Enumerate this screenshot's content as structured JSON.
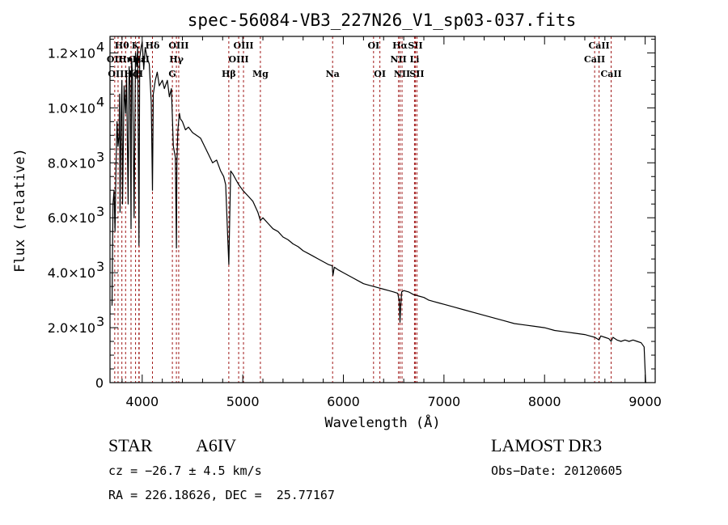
{
  "chart_data": {
    "type": "line",
    "title": "spec-56084-VB3_227N26_V1_sp03-037.fits",
    "xlabel": "Wavelength (Å)",
    "ylabel": "Flux (relative)",
    "xlim": [
      3680,
      9100
    ],
    "ylim": [
      0,
      12600
    ],
    "xticks": [
      4000,
      5000,
      6000,
      7000,
      8000,
      9000
    ],
    "xtick_labels": [
      "4000",
      "5000",
      "6000",
      "7000",
      "8000",
      "9000"
    ],
    "yticks": [
      0,
      2000,
      4000,
      6000,
      8000,
      10000,
      12000
    ],
    "ytick_labels": [
      {
        "mant": "0",
        "exp": ""
      },
      {
        "mant": "2.0×10",
        "exp": "3"
      },
      {
        "mant": "4.0×10",
        "exp": "3"
      },
      {
        "mant": "6.0×10",
        "exp": "3"
      },
      {
        "mant": "8.0×10",
        "exp": "3"
      },
      {
        "mant": "1.0×10",
        "exp": "4"
      },
      {
        "mant": "1.2×10",
        "exp": "4"
      }
    ],
    "grid": false,
    "series": [
      {
        "name": "spectrum",
        "x": [
          3700,
          3710,
          3720,
          3730,
          3740,
          3750,
          3760,
          3770,
          3775,
          3780,
          3790,
          3798,
          3805,
          3820,
          3835,
          3845,
          3860,
          3870,
          3880,
          3889,
          3895,
          3905,
          3920,
          3933,
          3945,
          3955,
          3968,
          3975,
          3990,
          4000,
          4015,
          4030,
          4050,
          4070,
          4090,
          4102,
          4110,
          4130,
          4150,
          4170,
          4200,
          4220,
          4250,
          4270,
          4290,
          4310,
          4330,
          4340,
          4345,
          4355,
          4370,
          4380,
          4400,
          4430,
          4460,
          4500,
          4540,
          4580,
          4620,
          4660,
          4700,
          4740,
          4780,
          4810,
          4830,
          4850,
          4861,
          4870,
          4880,
          4900,
          4930,
          4960,
          5000,
          5050,
          5100,
          5150,
          5175,
          5200,
          5250,
          5300,
          5350,
          5400,
          5450,
          5500,
          5550,
          5600,
          5650,
          5700,
          5750,
          5800,
          5850,
          5890,
          5896,
          5910,
          5950,
          6000,
          6050,
          6100,
          6150,
          6200,
          6250,
          6300,
          6350,
          6400,
          6450,
          6500,
          6540,
          6555,
          6563,
          6570,
          6580,
          6600,
          6650,
          6700,
          6750,
          6800,
          6850,
          6900,
          6950,
          7000,
          7100,
          7200,
          7300,
          7400,
          7500,
          7600,
          7700,
          7800,
          7900,
          8000,
          8100,
          8200,
          8300,
          8400,
          8450,
          8500,
          8542,
          8560,
          8600,
          8640,
          8662,
          8680,
          8720,
          8760,
          8800,
          8840,
          8880,
          8920,
          8960,
          8990,
          9000,
          9005,
          9010
        ],
        "y": [
          2800,
          6500,
          7000,
          5500,
          8000,
          9500,
          8600,
          9000,
          10500,
          6200,
          9700,
          11000,
          6500,
          10800,
          9800,
          11200,
          6500,
          11500,
          10800,
          5600,
          11800,
          11000,
          6000,
          12000,
          11500,
          12200,
          5000,
          11800,
          12200,
          12400,
          11400,
          12200,
          11800,
          11600,
          10200,
          7000,
          10500,
          11000,
          11300,
          10800,
          11000,
          10700,
          11000,
          10400,
          10700,
          8600,
          8200,
          4900,
          8000,
          9200,
          9800,
          9600,
          9500,
          9200,
          9300,
          9100,
          9000,
          8900,
          8600,
          8300,
          8000,
          8100,
          7700,
          7500,
          7200,
          5300,
          4300,
          6000,
          7700,
          7600,
          7400,
          7200,
          7000,
          6800,
          6600,
          6200,
          5900,
          6000,
          5800,
          5600,
          5500,
          5300,
          5200,
          5050,
          4950,
          4800,
          4700,
          4600,
          4500,
          4400,
          4300,
          4250,
          3900,
          4200,
          4100,
          4000,
          3900,
          3800,
          3700,
          3600,
          3550,
          3500,
          3450,
          3400,
          3350,
          3300,
          3250,
          3000,
          2200,
          2800,
          3300,
          3350,
          3300,
          3200,
          3150,
          3100,
          3000,
          2950,
          2900,
          2850,
          2750,
          2650,
          2550,
          2450,
          2350,
          2250,
          2150,
          2100,
          2050,
          2000,
          1900,
          1850,
          1800,
          1750,
          1700,
          1650,
          1550,
          1700,
          1650,
          1600,
          1500,
          1650,
          1550,
          1500,
          1550,
          1500,
          1550,
          1500,
          1450,
          1300,
          400,
          0,
          0
        ]
      }
    ],
    "line_markers": [
      {
        "label": "Hθ",
        "wavelength": 3798,
        "row": 1
      },
      {
        "label": "K",
        "wavelength": 3934,
        "row": 1
      },
      {
        "label": "Hδ",
        "wavelength": 4102,
        "row": 1
      },
      {
        "label": "OIII",
        "wavelength": 4363,
        "row": 1
      },
      {
        "label": "OIII",
        "wavelength": 5007,
        "row": 1
      },
      {
        "label": "OI",
        "wavelength": 6300,
        "row": 1
      },
      {
        "label": "Hα",
        "wavelength": 6563,
        "row": 1
      },
      {
        "label": "SII",
        "wavelength": 6716,
        "row": 1
      },
      {
        "label": "CaII",
        "wavelength": 8542,
        "row": 1
      },
      {
        "label": "OII",
        "wavelength": 3727,
        "row": 2
      },
      {
        "label": "Hη",
        "wavelength": 3835,
        "row": 2
      },
      {
        "label": "Hε",
        "wavelength": 3970,
        "row": 2
      },
      {
        "label": "CaII",
        "wavelength": 3968,
        "row": 2
      },
      {
        "label": "Hγ",
        "wavelength": 4340,
        "row": 2
      },
      {
        "label": "OIII",
        "wavelength": 4959,
        "row": 2
      },
      {
        "label": "NII",
        "wavelength": 6548,
        "row": 2
      },
      {
        "label": "Li",
        "wavelength": 6707,
        "row": 2
      },
      {
        "label": "CaII",
        "wavelength": 8498,
        "row": 2
      },
      {
        "label": "OIII",
        "wavelength": 3760,
        "row": 3
      },
      {
        "label": "Hζ",
        "wavelength": 3889,
        "row": 3
      },
      {
        "label": "H",
        "wavelength": 3968,
        "row": 3
      },
      {
        "label": "G",
        "wavelength": 4300,
        "row": 3
      },
      {
        "label": "Hβ",
        "wavelength": 4861,
        "row": 3
      },
      {
        "label": "Mg",
        "wavelength": 5175,
        "row": 3
      },
      {
        "label": "Na",
        "wavelength": 5893,
        "row": 3
      },
      {
        "label": "OI",
        "wavelength": 6363,
        "row": 3
      },
      {
        "label": "NII",
        "wavelength": 6583,
        "row": 3
      },
      {
        "label": "SII",
        "wavelength": 6731,
        "row": 3
      },
      {
        "label": "CaII",
        "wavelength": 8662,
        "row": 3
      }
    ],
    "colors": {
      "spectrum": "#000000",
      "line_marker": "#a01818",
      "frame": "#000000"
    }
  },
  "info": {
    "object_class": "STAR",
    "subclass": "A6IV",
    "redshift_text": "cz = −26.7 ± 4.5 km/s",
    "coords_text": "RA = 226.18626, DEC =  25.77167",
    "survey": "LAMOST DR3",
    "obs_date_text": "Obs−Date: 20120605"
  }
}
